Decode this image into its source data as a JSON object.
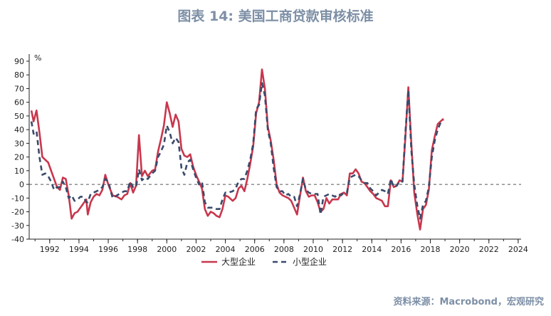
{
  "title": "图表 14: 美国工商贷款审核标准",
  "source": "资料来源：Macrobond，宏观研究",
  "chart_data": {
    "type": "line",
    "ylabel": "%",
    "ylim": [
      -40,
      90
    ],
    "xlim": [
      1990.6,
      2024.2
    ],
    "yticks": [
      90,
      80,
      70,
      60,
      50,
      40,
      30,
      20,
      10,
      0,
      -10,
      -20,
      -30,
      -40
    ],
    "xticks": [
      "1992",
      "1994",
      "1996",
      "1998",
      "2000",
      "2002",
      "2004",
      "2006",
      "2008",
      "2010",
      "2012",
      "2014",
      "2016",
      "2018",
      "2020",
      "2022",
      "2024"
    ],
    "zero_line": "dashed",
    "legend_position": "bottom",
    "series": [
      {
        "name": "大型企业",
        "color": "#c8374d",
        "style": "solid",
        "points": [
          [
            1990.75,
            54
          ],
          [
            1990.9,
            46
          ],
          [
            1991.1,
            54
          ],
          [
            1991.3,
            38
          ],
          [
            1991.5,
            20
          ],
          [
            1991.7,
            18
          ],
          [
            1991.9,
            16
          ],
          [
            1992.1,
            10
          ],
          [
            1992.3,
            4
          ],
          [
            1992.5,
            -2
          ],
          [
            1992.7,
            -4
          ],
          [
            1992.9,
            5
          ],
          [
            1993.1,
            4
          ],
          [
            1993.3,
            -8
          ],
          [
            1993.5,
            -25
          ],
          [
            1993.7,
            -21
          ],
          [
            1993.9,
            -20
          ],
          [
            1994.1,
            -17
          ],
          [
            1994.3,
            -14
          ],
          [
            1994.5,
            -11
          ],
          [
            1994.6,
            -22
          ],
          [
            1994.8,
            -13
          ],
          [
            1995.0,
            -9
          ],
          [
            1995.2,
            -7
          ],
          [
            1995.4,
            -8
          ],
          [
            1995.6,
            -4
          ],
          [
            1995.8,
            7
          ],
          [
            1996.0,
            0
          ],
          [
            1996.3,
            -8
          ],
          [
            1996.6,
            -9
          ],
          [
            1996.9,
            -11
          ],
          [
            1997.1,
            -8
          ],
          [
            1997.3,
            -7
          ],
          [
            1997.5,
            1
          ],
          [
            1997.7,
            -6
          ],
          [
            1997.9,
            -1
          ],
          [
            1998.1,
            36
          ],
          [
            1998.3,
            6
          ],
          [
            1998.5,
            10
          ],
          [
            1998.7,
            6
          ],
          [
            1999.0,
            10
          ],
          [
            1999.2,
            11
          ],
          [
            1999.4,
            24
          ],
          [
            1999.6,
            33
          ],
          [
            1999.8,
            43
          ],
          [
            2000.0,
            60
          ],
          [
            2000.2,
            52
          ],
          [
            2000.4,
            42
          ],
          [
            2000.6,
            51
          ],
          [
            2000.8,
            46
          ],
          [
            2001.0,
            26
          ],
          [
            2001.2,
            21
          ],
          [
            2001.4,
            20
          ],
          [
            2001.6,
            22
          ],
          [
            2001.8,
            13
          ],
          [
            2002.0,
            7
          ],
          [
            2002.2,
            2
          ],
          [
            2002.4,
            -3
          ],
          [
            2002.6,
            -18
          ],
          [
            2002.8,
            -23
          ],
          [
            2003.0,
            -20
          ],
          [
            2003.2,
            -21
          ],
          [
            2003.4,
            -23
          ],
          [
            2003.6,
            -24
          ],
          [
            2003.8,
            -18
          ],
          [
            2004.0,
            -8
          ],
          [
            2004.2,
            -9
          ],
          [
            2004.5,
            -12
          ],
          [
            2004.7,
            -10
          ],
          [
            2004.9,
            -3
          ],
          [
            2005.1,
            -1
          ],
          [
            2005.3,
            -5
          ],
          [
            2005.5,
            4
          ],
          [
            2005.7,
            15
          ],
          [
            2005.9,
            28
          ],
          [
            2006.1,
            52
          ],
          [
            2006.3,
            60
          ],
          [
            2006.5,
            84
          ],
          [
            2006.7,
            70
          ],
          [
            2006.9,
            42
          ],
          [
            2007.1,
            32
          ],
          [
            2007.3,
            18
          ],
          [
            2007.5,
            0
          ],
          [
            2007.7,
            -6
          ],
          [
            2007.9,
            -8
          ],
          [
            2008.1,
            -9
          ],
          [
            2008.3,
            -10
          ],
          [
            2008.5,
            -12
          ],
          [
            2008.7,
            -17
          ],
          [
            2008.9,
            -22
          ],
          [
            2009.1,
            -8
          ],
          [
            2009.3,
            5
          ],
          [
            2009.5,
            -5
          ],
          [
            2009.7,
            -9
          ],
          [
            2009.9,
            -8
          ],
          [
            2010.1,
            -8
          ],
          [
            2010.3,
            -13
          ],
          [
            2010.5,
            -20
          ],
          [
            2010.7,
            -18
          ],
          [
            2010.9,
            -10
          ],
          [
            2011.1,
            -14
          ],
          [
            2011.3,
            -11
          ],
          [
            2011.5,
            -11
          ],
          [
            2011.7,
            -11
          ],
          [
            2011.9,
            -7
          ],
          [
            2012.1,
            -6
          ],
          [
            2012.3,
            -8
          ],
          [
            2012.5,
            8
          ],
          [
            2012.7,
            8
          ],
          [
            2012.9,
            11
          ],
          [
            2013.1,
            8
          ],
          [
            2013.3,
            2
          ],
          [
            2013.5,
            1
          ],
          [
            2013.7,
            -2
          ],
          [
            2013.9,
            -5
          ],
          [
            2014.1,
            -7
          ],
          [
            2014.3,
            -10
          ],
          [
            2014.5,
            -11
          ],
          [
            2014.7,
            -12
          ],
          [
            2014.9,
            -16
          ],
          [
            2015.1,
            -16
          ],
          [
            2015.3,
            3
          ],
          [
            2015.5,
            -2
          ],
          [
            2015.7,
            -1
          ],
          [
            2015.9,
            3
          ],
          [
            2016.1,
            2
          ],
          [
            2016.3,
            35
          ],
          [
            2016.5,
            71
          ],
          [
            2016.7,
            30
          ],
          [
            2016.9,
            -6
          ],
          [
            2017.1,
            -21
          ],
          [
            2017.3,
            -33
          ],
          [
            2017.5,
            -18
          ],
          [
            2017.7,
            -15
          ],
          [
            2017.9,
            -4
          ],
          [
            2018.1,
            25
          ],
          [
            2018.3,
            35
          ],
          [
            2018.5,
            44
          ],
          [
            2018.7,
            46
          ],
          [
            2018.9,
            48
          ]
        ]
      },
      {
        "name": "小型企业",
        "color": "#3b4a6b",
        "style": "dashed",
        "points": [
          [
            1990.75,
            46
          ],
          [
            1990.9,
            37
          ],
          [
            1991.1,
            39
          ],
          [
            1991.3,
            20
          ],
          [
            1991.5,
            7
          ],
          [
            1991.7,
            8
          ],
          [
            1991.9,
            6
          ],
          [
            1992.1,
            2
          ],
          [
            1992.3,
            -4
          ],
          [
            1992.5,
            -2
          ],
          [
            1992.7,
            -2
          ],
          [
            1992.9,
            2
          ],
          [
            1993.1,
            -2
          ],
          [
            1993.3,
            -10
          ],
          [
            1993.5,
            -8
          ],
          [
            1993.7,
            -12
          ],
          [
            1993.9,
            -11
          ],
          [
            1994.1,
            -9
          ],
          [
            1994.3,
            -9
          ],
          [
            1994.5,
            -13
          ],
          [
            1994.6,
            -13
          ],
          [
            1994.8,
            -7
          ],
          [
            1995.0,
            -6
          ],
          [
            1995.2,
            -5
          ],
          [
            1995.4,
            -4
          ],
          [
            1995.6,
            -2
          ],
          [
            1995.8,
            4
          ],
          [
            1996.0,
            2
          ],
          [
            1996.3,
            -10
          ],
          [
            1996.6,
            -8
          ],
          [
            1996.9,
            -6
          ],
          [
            1997.1,
            -5
          ],
          [
            1997.3,
            -5
          ],
          [
            1997.5,
            2
          ],
          [
            1997.7,
            -2
          ],
          [
            1997.9,
            -2
          ],
          [
            1998.1,
            11
          ],
          [
            1998.3,
            3
          ],
          [
            1998.5,
            5
          ],
          [
            1998.7,
            4
          ],
          [
            1999.0,
            8
          ],
          [
            1999.2,
            10
          ],
          [
            1999.4,
            20
          ],
          [
            1999.6,
            24
          ],
          [
            1999.8,
            29
          ],
          [
            2000.0,
            43
          ],
          [
            2000.2,
            38
          ],
          [
            2000.4,
            30
          ],
          [
            2000.6,
            34
          ],
          [
            2000.8,
            31
          ],
          [
            2001.0,
            12
          ],
          [
            2001.2,
            7
          ],
          [
            2001.4,
            16
          ],
          [
            2001.6,
            18
          ],
          [
            2001.8,
            11
          ],
          [
            2002.0,
            5
          ],
          [
            2002.2,
            0
          ],
          [
            2002.4,
            2
          ],
          [
            2002.6,
            -13
          ],
          [
            2002.8,
            -17
          ],
          [
            2003.0,
            -17
          ],
          [
            2003.2,
            -17
          ],
          [
            2003.4,
            -18
          ],
          [
            2003.6,
            -18
          ],
          [
            2003.8,
            -11
          ],
          [
            2004.0,
            -6
          ],
          [
            2004.2,
            -6
          ],
          [
            2004.5,
            -5
          ],
          [
            2004.7,
            -3
          ],
          [
            2004.9,
            2
          ],
          [
            2005.1,
            4
          ],
          [
            2005.3,
            4
          ],
          [
            2005.5,
            10
          ],
          [
            2005.7,
            18
          ],
          [
            2005.9,
            30
          ],
          [
            2006.1,
            55
          ],
          [
            2006.3,
            58
          ],
          [
            2006.5,
            74
          ],
          [
            2006.7,
            65
          ],
          [
            2006.9,
            40
          ],
          [
            2007.1,
            30
          ],
          [
            2007.3,
            12
          ],
          [
            2007.5,
            -2
          ],
          [
            2007.7,
            -5
          ],
          [
            2007.9,
            -5
          ],
          [
            2008.1,
            -8
          ],
          [
            2008.3,
            -7
          ],
          [
            2008.5,
            -9
          ],
          [
            2008.7,
            -9
          ],
          [
            2008.9,
            -16
          ],
          [
            2009.1,
            -7
          ],
          [
            2009.3,
            4
          ],
          [
            2009.5,
            -4
          ],
          [
            2009.7,
            -6
          ],
          [
            2009.9,
            -7
          ],
          [
            2010.1,
            -7
          ],
          [
            2010.3,
            -7
          ],
          [
            2010.5,
            -22
          ],
          [
            2010.7,
            -9
          ],
          [
            2010.9,
            -8
          ],
          [
            2011.1,
            -7
          ],
          [
            2011.3,
            -8
          ],
          [
            2011.5,
            -9
          ],
          [
            2011.7,
            -7
          ],
          [
            2011.9,
            -8
          ],
          [
            2012.1,
            -6
          ],
          [
            2012.3,
            -6
          ],
          [
            2012.5,
            5
          ],
          [
            2012.7,
            6
          ],
          [
            2012.9,
            7
          ],
          [
            2013.1,
            6
          ],
          [
            2013.3,
            3
          ],
          [
            2013.5,
            1
          ],
          [
            2013.7,
            1
          ],
          [
            2013.9,
            -3
          ],
          [
            2014.1,
            -5
          ],
          [
            2014.3,
            -8
          ],
          [
            2014.5,
            -6
          ],
          [
            2014.7,
            -4
          ],
          [
            2014.9,
            -5
          ],
          [
            2015.1,
            -7
          ],
          [
            2015.3,
            4
          ],
          [
            2015.5,
            -2
          ],
          [
            2015.7,
            -1
          ],
          [
            2015.9,
            2
          ],
          [
            2016.1,
            2
          ],
          [
            2016.3,
            38
          ],
          [
            2016.5,
            69
          ],
          [
            2016.7,
            25
          ],
          [
            2016.9,
            0
          ],
          [
            2017.1,
            -15
          ],
          [
            2017.3,
            -25
          ],
          [
            2017.5,
            -15
          ],
          [
            2017.7,
            -12
          ],
          [
            2017.9,
            -2
          ],
          [
            2018.1,
            20
          ],
          [
            2018.3,
            32
          ],
          [
            2018.5,
            40
          ],
          [
            2018.7,
            45
          ],
          [
            2018.9,
            47
          ]
        ]
      }
    ]
  }
}
